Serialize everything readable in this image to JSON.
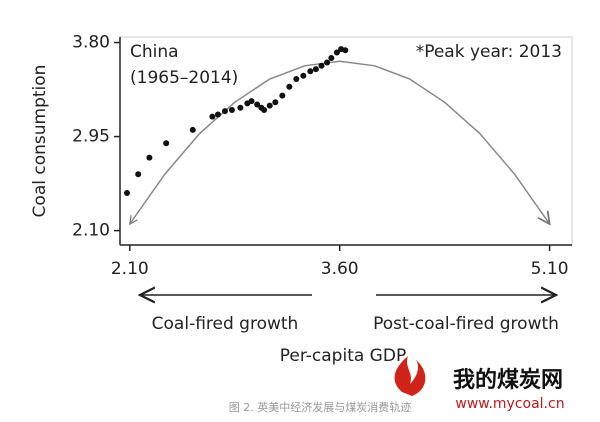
{
  "chart_data": {
    "type": "scatter",
    "y_label": "Coal consumption",
    "x_label": "Per-capita GDP",
    "annotations": [
      "China",
      "(1965–2014)",
      "*Peak year: 2013",
      "Coal-fired growth",
      "Post-coal-fired growth"
    ],
    "caption": "图 2. 英美中经济发展与煤炭消费轨迹",
    "watermark": [
      "我的煤炭网",
      "www.mycoal.cn"
    ],
    "xlim": [
      2.03,
      5.26
    ],
    "ylim": [
      1.97,
      3.85
    ],
    "xticks": [
      {
        "value": 2.1,
        "label": "2.10"
      },
      {
        "value": 3.6,
        "label": "3.60"
      },
      {
        "value": 5.1,
        "label": "5.10"
      }
    ],
    "yticks": [
      {
        "value": 2.1,
        "label": "2.10"
      },
      2.95,
      {
        "value": 3.8,
        "label": "3.80"
      }
    ],
    "color": "#111111",
    "x": [
      2.08,
      2.16,
      2.24,
      2.36,
      2.55,
      2.69,
      2.73,
      2.78,
      2.83,
      2.89,
      2.94,
      2.97,
      3.01,
      3.04,
      3.06,
      3.1,
      3.14,
      3.19,
      3.24,
      3.29,
      3.34,
      3.39,
      3.43,
      3.47,
      3.51,
      3.54,
      3.58,
      3.61,
      3.64
    ],
    "values": [
      2.44,
      2.61,
      2.76,
      2.89,
      3.01,
      3.13,
      3.15,
      3.18,
      3.19,
      3.21,
      3.25,
      3.27,
      3.24,
      3.21,
      3.19,
      3.23,
      3.26,
      3.32,
      3.4,
      3.47,
      3.5,
      3.54,
      3.56,
      3.59,
      3.62,
      3.66,
      3.71,
      3.74,
      3.73
    ],
    "curve": {
      "color": "#888888",
      "x": [
        2.1,
        2.35,
        2.6,
        2.85,
        3.1,
        3.35,
        3.6,
        3.85,
        4.1,
        4.35,
        4.6,
        4.85,
        5.1
      ],
      "values": [
        2.16,
        2.61,
        2.98,
        3.26,
        3.47,
        3.59,
        3.63,
        3.59,
        3.47,
        3.26,
        2.98,
        2.61,
        2.16
      ]
    }
  }
}
